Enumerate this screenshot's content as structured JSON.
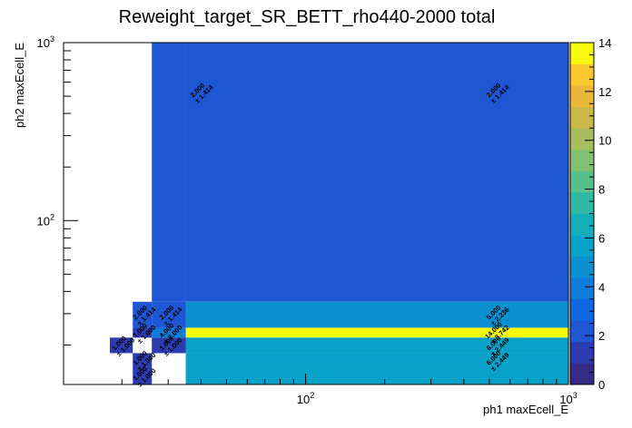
{
  "chart_data": {
    "type": "heatmap",
    "title": "Reweight_target_SR_BETT_rho440-2000 total",
    "xlabel": "ph1 maxEcell_E",
    "ylabel": "ph2 maxEcell_E",
    "x_scale": "log",
    "y_scale": "log",
    "xlim": [
      12,
      1000
    ],
    "ylim": [
      12,
      1000
    ],
    "x_edges": [
      12,
      18,
      22,
      26,
      35,
      1000
    ],
    "y_edges": [
      12,
      15,
      18,
      22,
      25,
      35,
      1000
    ],
    "x_tick_labels": [
      {
        "base": "10",
        "exp": "2",
        "value": 100
      },
      {
        "base": "10",
        "exp": "3",
        "value": 1000
      }
    ],
    "y_tick_labels": [
      {
        "base": "10",
        "exp": "2",
        "value": 100
      },
      {
        "base": "10",
        "exp": "3",
        "value": 1000
      }
    ],
    "colorbar": {
      "min": 0,
      "max": 14,
      "ticks": [
        "0",
        "2",
        "4",
        "6",
        "8",
        "10",
        "12",
        "14"
      ],
      "palette": [
        "#352a87",
        "#2c3cb0",
        "#1e56d3",
        "#0f68e0",
        "#0f7cd8",
        "#0b91d1",
        "#08a1c7",
        "#14afb6",
        "#2fb9a3",
        "#5ac08b",
        "#83c072",
        "#a7bd5d",
        "#cbb749",
        "#e9b83a",
        "#fbc92e",
        "#f8fa0d"
      ]
    },
    "cells": [
      {
        "xi": 4,
        "yi": 5,
        "value": 2.0,
        "label": "2.000",
        "err": "± 1.414"
      },
      {
        "xi": 4,
        "yi": 4,
        "value": 5.0,
        "label": "5.000",
        "err": "± 2.236"
      },
      {
        "xi": 4,
        "yi": 3,
        "value": 14.0,
        "label": "14.000",
        "err": "± 3.742"
      },
      {
        "xi": 4,
        "yi": 2,
        "value": 6.0,
        "label": "6.000",
        "err": "± 2.449"
      },
      {
        "xi": 4,
        "yi": 1,
        "value": 6.0,
        "label": "6.000",
        "err": "± 2.449"
      },
      {
        "xi": 4,
        "yi": 0,
        "value": 6.0,
        "label": "6.000",
        "err": "± 2.449"
      },
      {
        "xi": 3,
        "yi": 5,
        "value": 2.0,
        "label": "2.000",
        "err": "± 1.414"
      },
      {
        "xi": 3,
        "yi": 4,
        "value": 2.0,
        "label": "2.000",
        "err": "± 1.414"
      },
      {
        "xi": 3,
        "yi": 3,
        "value": 4.0,
        "label": "4.000",
        "err": "± 2.000"
      },
      {
        "xi": 3,
        "yi": 2,
        "value": 1.0,
        "label": "1.000",
        "err": "± 1.000"
      },
      {
        "xi": 2,
        "yi": 4,
        "value": 2.0,
        "label": "2.000",
        "err": "± 1.414"
      },
      {
        "xi": 2,
        "yi": 3,
        "value": 1.0,
        "label": "1.000",
        "err": "± 1.000"
      },
      {
        "xi": 2,
        "yi": 1,
        "value": 1.0,
        "label": "1.000",
        "err": "± 1.000"
      },
      {
        "xi": 2,
        "yi": 0,
        "value": 1.0,
        "label": "1.000",
        "err": "± 1.000"
      },
      {
        "xi": 1,
        "yi": 2,
        "value": 1.0,
        "label": "1.000",
        "err": "± 1.000"
      }
    ],
    "labels_shown_for": [
      [
        4,
        5
      ],
      [
        3,
        5
      ],
      [
        4,
        4
      ],
      [
        3,
        4
      ],
      [
        2,
        4
      ],
      [
        4,
        3
      ],
      [
        3,
        3
      ],
      [
        2,
        3
      ],
      [
        4,
        2
      ],
      [
        3,
        2
      ],
      [
        2,
        1
      ],
      [
        1,
        2
      ],
      [
        4,
        1
      ],
      [
        2,
        0
      ]
    ]
  }
}
